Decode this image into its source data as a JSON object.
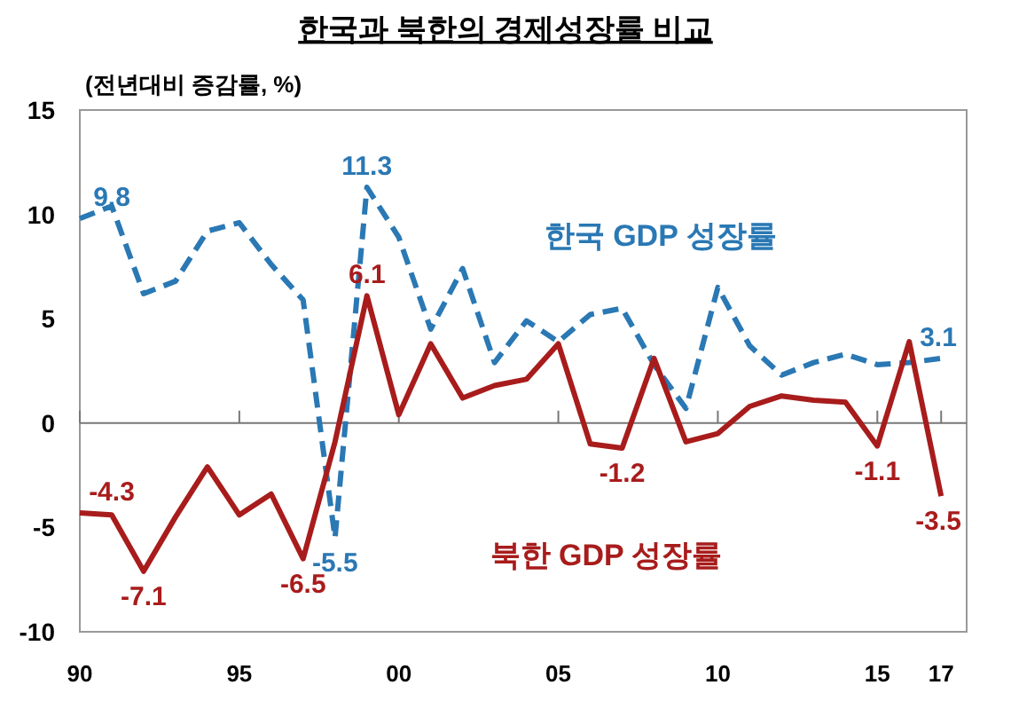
{
  "chart_data": {
    "type": "line",
    "title": "한국과 북한의 경제성장률 비교",
    "ylabel": "(전년대비 증감률, %)",
    "x": [
      1990,
      1991,
      1992,
      1993,
      1994,
      1995,
      1996,
      1997,
      1998,
      1999,
      2000,
      2001,
      2002,
      2003,
      2004,
      2005,
      2006,
      2007,
      2008,
      2009,
      2010,
      2011,
      2012,
      2013,
      2014,
      2015,
      2016,
      2017
    ],
    "series": [
      {
        "name": "한국 GDP 성장률",
        "color": "#2a78b4",
        "line_style": "dashed",
        "values": [
          9.8,
          10.4,
          6.2,
          6.8,
          9.2,
          9.6,
          7.6,
          5.9,
          -5.5,
          11.3,
          8.9,
          4.5,
          7.4,
          2.9,
          4.9,
          3.9,
          5.2,
          5.5,
          2.8,
          0.7,
          6.5,
          3.7,
          2.3,
          2.9,
          3.3,
          2.8,
          2.9,
          3.1
        ],
        "value_labels": [
          "9.8",
          null,
          null,
          null,
          null,
          null,
          null,
          null,
          "-5.5",
          "11.3",
          null,
          null,
          null,
          null,
          null,
          null,
          null,
          null,
          null,
          null,
          null,
          null,
          null,
          null,
          null,
          null,
          null,
          "3.1"
        ]
      },
      {
        "name": "북한 GDP 성장률",
        "color": "#a81c1c",
        "line_style": "solid",
        "values": [
          -4.3,
          -4.4,
          -7.1,
          -4.5,
          -2.1,
          -4.4,
          -3.4,
          -6.5,
          -0.9,
          6.1,
          0.4,
          3.8,
          1.2,
          1.8,
          2.1,
          3.8,
          -1.0,
          -1.2,
          3.1,
          -0.9,
          -0.5,
          0.8,
          1.3,
          1.1,
          1.0,
          -1.1,
          3.9,
          -3.5
        ],
        "value_labels": [
          "-4.3",
          null,
          "-7.1",
          null,
          null,
          null,
          null,
          "-6.5",
          null,
          "6.1",
          null,
          null,
          null,
          null,
          null,
          null,
          null,
          "-1.2",
          null,
          null,
          null,
          null,
          null,
          null,
          null,
          "-1.1",
          null,
          "-3.5"
        ]
      }
    ],
    "xlim": [
      1990,
      2017.8
    ],
    "xticks": [
      {
        "value": 1990,
        "label": "90"
      },
      {
        "value": 1995,
        "label": "95"
      },
      {
        "value": 2000,
        "label": "00"
      },
      {
        "value": 2005,
        "label": "05"
      },
      {
        "value": 2010,
        "label": "10"
      },
      {
        "value": 2015,
        "label": "15"
      },
      {
        "value": 2017,
        "label": "17"
      }
    ],
    "ylim": [
      -10,
      15
    ],
    "yticks": [
      -10,
      -5,
      0,
      5,
      10,
      15
    ],
    "ref_lines": [
      {
        "axis": "y",
        "value": 0,
        "color": "#777777"
      }
    ],
    "marker": "none"
  }
}
